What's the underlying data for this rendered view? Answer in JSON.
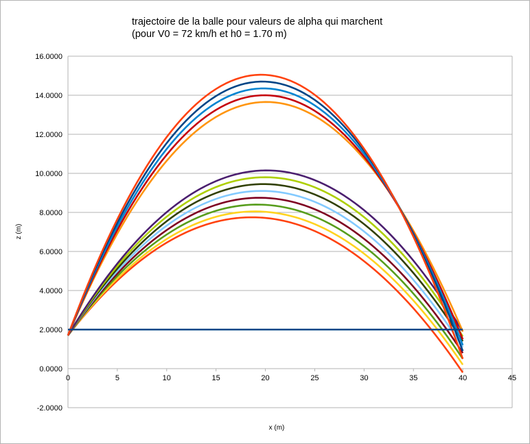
{
  "chart_data": {
    "type": "line",
    "title_line1": "trajectoire de la balle pour valeurs de alpha qui marchent",
    "title_line2": "(pour V0 = 72 km/h et h0 = 1.70 m)",
    "xlabel": "x (m)",
    "ylabel": "z (m)",
    "xlim": [
      0,
      45
    ],
    "ylim": [
      -2,
      16
    ],
    "x_ticks": [
      "0",
      "5",
      "10",
      "15",
      "20",
      "25",
      "30",
      "35",
      "40",
      "45"
    ],
    "y_ticks": [
      "-2.0000",
      "0.0000",
      "2.0000",
      "4.0000",
      "6.0000",
      "8.0000",
      "10.0000",
      "12.0000",
      "14.0000",
      "16.0000"
    ],
    "grid": true,
    "legend": "none",
    "series": [
      {
        "color": "#ff420e",
        "x": [
          0,
          18.5,
          40
        ],
        "y": [
          1.7,
          7.75,
          -0.2
        ]
      },
      {
        "color": "#ffd320",
        "x": [
          0,
          18.8,
          40
        ],
        "y": [
          1.7,
          8.05,
          0.2
        ]
      },
      {
        "color": "#579d1c",
        "x": [
          0,
          19.0,
          40
        ],
        "y": [
          1.7,
          8.4,
          0.5
        ]
      },
      {
        "color": "#7e0021",
        "x": [
          0,
          19.3,
          40
        ],
        "y": [
          1.7,
          8.75,
          0.8
        ]
      },
      {
        "color": "#83caff",
        "x": [
          0,
          19.5,
          40
        ],
        "y": [
          1.7,
          9.1,
          1.1
        ]
      },
      {
        "color": "#314004",
        "x": [
          0,
          19.7,
          40
        ],
        "y": [
          1.7,
          9.45,
          1.4
        ]
      },
      {
        "color": "#aecf00",
        "x": [
          0,
          19.8,
          40
        ],
        "y": [
          1.7,
          9.8,
          1.65
        ]
      },
      {
        "color": "#4b1f6f",
        "x": [
          0,
          20.0,
          40
        ],
        "y": [
          1.7,
          10.15,
          1.9
        ]
      },
      {
        "color": "#ff950e",
        "x": [
          0,
          20.5,
          40
        ],
        "y": [
          1.7,
          13.65,
          1.9
        ]
      },
      {
        "color": "#c5000b",
        "x": [
          0,
          20.0,
          40
        ],
        "y": [
          1.7,
          14.0,
          1.5
        ]
      },
      {
        "color": "#0084d1",
        "x": [
          0,
          19.8,
          40
        ],
        "y": [
          1.7,
          14.35,
          1.2
        ]
      },
      {
        "color": "#004586",
        "x": [
          0,
          19.6,
          40
        ],
        "y": [
          1.7,
          14.7,
          0.9
        ]
      },
      {
        "color": "#ff420e",
        "x": [
          0,
          19.5,
          40
        ],
        "y": [
          1.7,
          15.05,
          0.5
        ]
      },
      {
        "color": "#004586",
        "x": [
          0,
          40
        ],
        "y": [
          2.0,
          2.0
        ],
        "flat": true
      }
    ]
  }
}
